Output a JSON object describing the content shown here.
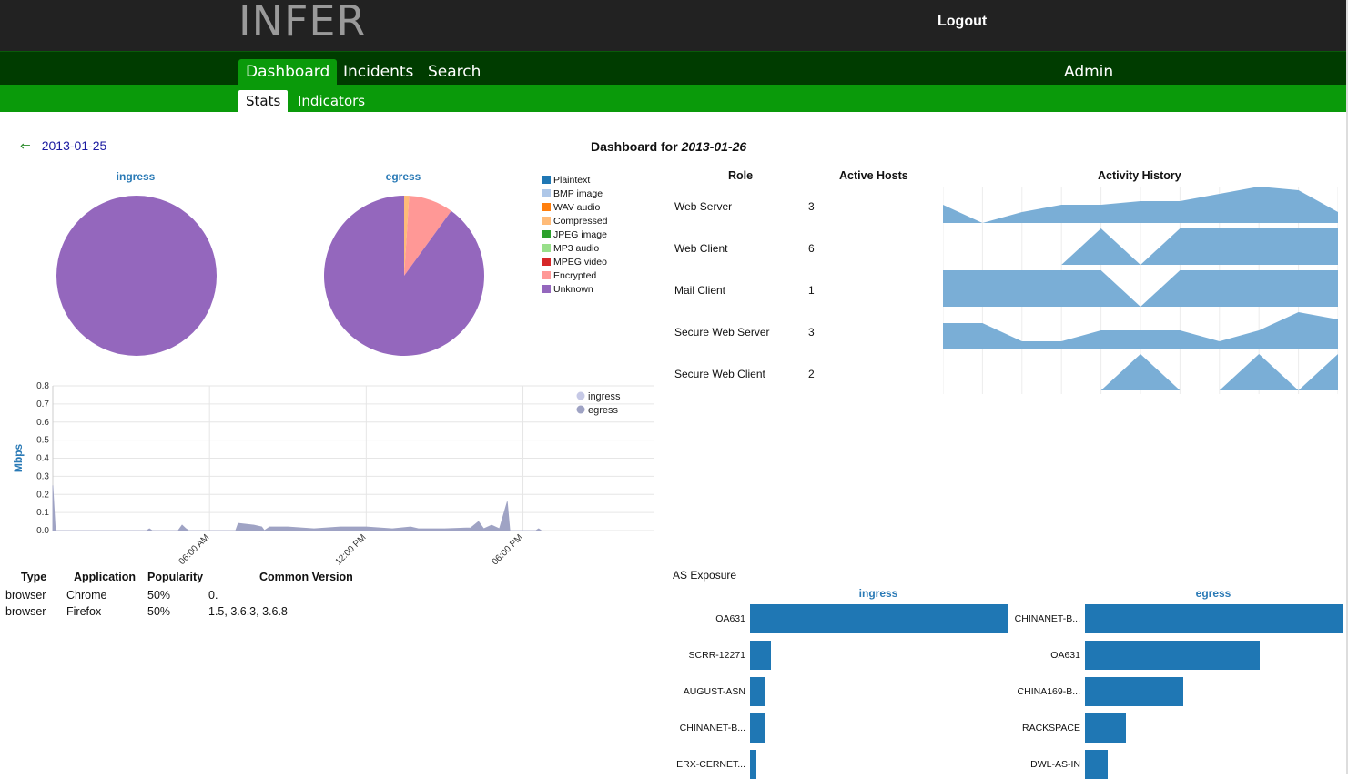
{
  "header": {
    "logo": "INFER",
    "logout": "Logout"
  },
  "nav": {
    "tabs": [
      "Dashboard",
      "Incidents",
      "Search"
    ],
    "admin": "Admin",
    "active": "Dashboard"
  },
  "subnav": {
    "tabs": [
      "Stats",
      "Indicators"
    ],
    "active": "Stats"
  },
  "dashboard": {
    "prev_date": "2013-01-25",
    "title_prefix": "Dashboard for ",
    "date": "2013-01-26"
  },
  "pies": {
    "legend": [
      {
        "label": "Plaintext",
        "color": "#1f77b4"
      },
      {
        "label": "BMP image",
        "color": "#aec7e8"
      },
      {
        "label": "WAV audio",
        "color": "#ff7f0e"
      },
      {
        "label": "Compressed",
        "color": "#ffbb78"
      },
      {
        "label": "JPEG image",
        "color": "#2ca02c"
      },
      {
        "label": "MP3 audio",
        "color": "#98df8a"
      },
      {
        "label": "MPEG video",
        "color": "#d62728"
      },
      {
        "label": "Encrypted",
        "color": "#ff9896"
      },
      {
        "label": "Unknown",
        "color": "#9467bd"
      }
    ],
    "ingress": {
      "title": "ingress",
      "slices": [
        {
          "label": "Unknown",
          "value": 100
        }
      ]
    },
    "egress": {
      "title": "egress",
      "slices": [
        {
          "label": "Compressed",
          "value": 1
        },
        {
          "label": "Encrypted",
          "value": 9
        },
        {
          "label": "Unknown",
          "value": 90
        }
      ]
    }
  },
  "chart_data": {
    "type": "area",
    "ylabel": "Mbps",
    "ylim": [
      0,
      0.8
    ],
    "yticks": [
      "0.0",
      "0.1",
      "0.2",
      "0.3",
      "0.4",
      "0.5",
      "0.6",
      "0.7",
      "0.8"
    ],
    "xticks": [
      {
        "label": "06:00 AM",
        "hour": 6
      },
      {
        "label": "12:00 PM",
        "hour": 12
      },
      {
        "label": "06:00 PM",
        "hour": 18
      }
    ],
    "series": [
      {
        "name": "ingress",
        "color": "#c6c9e6",
        "values": []
      },
      {
        "name": "egress",
        "color": "#9fa3c4",
        "values": [
          [
            0,
            0.25
          ],
          [
            0.1,
            0.0
          ],
          [
            3.6,
            0.0
          ],
          [
            3.7,
            0.01
          ],
          [
            3.8,
            0.0
          ],
          [
            4.8,
            0.0
          ],
          [
            4.95,
            0.03
          ],
          [
            5.1,
            0.01
          ],
          [
            5.2,
            0.0
          ],
          [
            7.0,
            0.0
          ],
          [
            7.1,
            0.04
          ],
          [
            7.7,
            0.03
          ],
          [
            8.0,
            0.02
          ],
          [
            8.1,
            0.0
          ],
          [
            8.3,
            0.02
          ],
          [
            8.5,
            0.02
          ],
          [
            9.0,
            0.02
          ],
          [
            9.5,
            0.015
          ],
          [
            10.0,
            0.01
          ],
          [
            11.0,
            0.02
          ],
          [
            12.0,
            0.02
          ],
          [
            13.0,
            0.01
          ],
          [
            13.7,
            0.02
          ],
          [
            14.0,
            0.01
          ],
          [
            15.0,
            0.01
          ],
          [
            16.0,
            0.015
          ],
          [
            16.3,
            0.05
          ],
          [
            16.5,
            0.01
          ],
          [
            16.8,
            0.03
          ],
          [
            17.1,
            0.01
          ],
          [
            17.4,
            0.16
          ],
          [
            17.5,
            0.0
          ],
          [
            18.5,
            0.0
          ],
          [
            18.6,
            0.01
          ],
          [
            18.7,
            0.0
          ]
        ]
      }
    ]
  },
  "apps": {
    "headers": [
      "Type",
      "Application",
      "Popularity",
      "Common Version"
    ],
    "rows": [
      [
        "browser",
        "Chrome",
        "50%",
        "0."
      ],
      [
        "browser",
        "Firefox",
        "50%",
        "1.5, 3.6.3, 3.6.8"
      ]
    ]
  },
  "roles": {
    "headers": [
      "Role",
      "Active Hosts",
      "Activity History"
    ],
    "rows": [
      {
        "role": "Web Server",
        "hosts": "3",
        "history": [
          0.5,
          0,
          0.3,
          0.5,
          0.5,
          0.6,
          0.6,
          0.8,
          1,
          0.9,
          0.3
        ]
      },
      {
        "role": "Web Client",
        "hosts": "6",
        "history": [
          0,
          0,
          0,
          0,
          1,
          0,
          1,
          1,
          1,
          1,
          1
        ]
      },
      {
        "role": "Mail Client",
        "hosts": "1",
        "history": [
          1,
          1,
          1,
          1,
          1,
          0,
          1,
          1,
          1,
          1,
          1
        ]
      },
      {
        "role": "Secure Web Server",
        "hosts": "3",
        "history": [
          0.7,
          0.7,
          0.2,
          0.2,
          0.5,
          0.5,
          0.5,
          0.2,
          0.5,
          1,
          0.8
        ]
      },
      {
        "role": "Secure Web Client",
        "hosts": "2",
        "history": [
          0,
          0,
          0,
          0,
          0,
          1,
          0,
          0,
          1,
          0,
          1
        ]
      }
    ]
  },
  "as_exposure": {
    "title": "AS Exposure",
    "ingress": {
      "title": "ingress",
      "items": [
        {
          "label": "OA631",
          "value": 100
        },
        {
          "label": "SCRR-12271",
          "value": 8
        },
        {
          "label": "AUGUST-ASN",
          "value": 6
        },
        {
          "label": "CHINANET-B...",
          "value": 5.5
        },
        {
          "label": "ERX-CERNET...",
          "value": 2.5
        }
      ]
    },
    "egress": {
      "title": "egress",
      "items": [
        {
          "label": "CHINANET-B...",
          "value": 100
        },
        {
          "label": "OA631",
          "value": 68
        },
        {
          "label": "CHINA169-B...",
          "value": 38
        },
        {
          "label": "RACKSPACE",
          "value": 16
        },
        {
          "label": "DWL-AS-IN",
          "value": 9
        }
      ]
    }
  }
}
